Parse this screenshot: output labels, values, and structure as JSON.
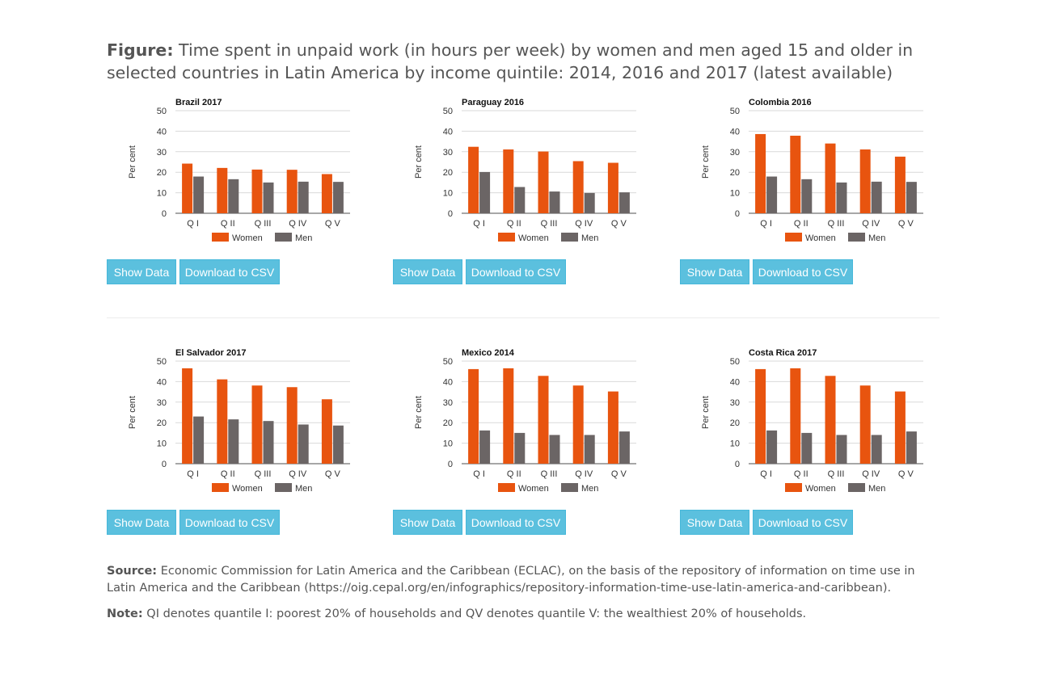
{
  "figure": {
    "label": "Figure:",
    "title": "Time spent in unpaid work (in hours per week) by women and men aged 15 and older in selected countries in Latin America by income quintile: 2014, 2016 and 2017 (latest available)"
  },
  "buttons": {
    "show_data": "Show Data",
    "download_csv": "Download to CSV"
  },
  "source": {
    "label": "Source:",
    "text": "Economic Commission for Latin America and the Caribbean (ECLAC), on the basis of the repository of information on time use in Latin America and the Caribbean (https://oig.cepal.org/en/infographics/repository-information-time-use-latin-america-and-caribbean)."
  },
  "note": {
    "label": "Note:",
    "text": "QI denotes quantile I: poorest 20% of households and QV denotes quantile V: the wealthiest 20% of households."
  },
  "colors": {
    "women": "#e8540f",
    "men": "#6b6565"
  },
  "chart_data": [
    {
      "type": "bar",
      "title": "Brazil 2017",
      "ylabel": "Per cent",
      "ylim": [
        0,
        50
      ],
      "yticks": [
        0,
        10,
        20,
        30,
        40,
        50
      ],
      "categories": [
        "Q I",
        "Q II",
        "Q III",
        "Q IV",
        "Q V"
      ],
      "series": [
        {
          "name": "Women",
          "values": [
            24.2,
            22.1,
            21.3,
            21.2,
            19.1
          ]
        },
        {
          "name": "Men",
          "values": [
            17.9,
            16.6,
            15.0,
            15.4,
            15.3
          ]
        }
      ],
      "legend": "bottom",
      "grid": true
    },
    {
      "type": "bar",
      "title": "Paraguay 2016",
      "ylabel": "Per cent",
      "ylim": [
        0,
        50
      ],
      "yticks": [
        0,
        10,
        20,
        30,
        40,
        50
      ],
      "categories": [
        "Q I",
        "Q II",
        "Q III",
        "Q IV",
        "Q V"
      ],
      "series": [
        {
          "name": "Women",
          "values": [
            32.4,
            31.1,
            30.1,
            25.4,
            24.6
          ]
        },
        {
          "name": "Men",
          "values": [
            20.1,
            12.8,
            10.6,
            9.9,
            10.2
          ]
        }
      ],
      "legend": "bottom",
      "grid": true
    },
    {
      "type": "bar",
      "title": "Colombia 2016",
      "ylabel": "Per cent",
      "ylim": [
        0,
        50
      ],
      "yticks": [
        0,
        10,
        20,
        30,
        40,
        50
      ],
      "categories": [
        "Q I",
        "Q II",
        "Q III",
        "Q IV",
        "Q V"
      ],
      "series": [
        {
          "name": "Women",
          "values": [
            38.6,
            37.8,
            34.0,
            31.1,
            27.6
          ]
        },
        {
          "name": "Men",
          "values": [
            17.9,
            16.6,
            15.0,
            15.4,
            15.3
          ]
        }
      ],
      "legend": "bottom",
      "grid": true
    },
    {
      "type": "bar",
      "title": "El Salvador 2017",
      "ylabel": "Per cent",
      "ylim": [
        0,
        50
      ],
      "yticks": [
        0,
        10,
        20,
        30,
        40,
        50
      ],
      "categories": [
        "Q I",
        "Q II",
        "Q III",
        "Q IV",
        "Q V"
      ],
      "series": [
        {
          "name": "Women",
          "values": [
            46.5,
            41.1,
            38.1,
            37.3,
            31.4
          ]
        },
        {
          "name": "Men",
          "values": [
            23.0,
            21.6,
            20.8,
            19.1,
            18.6
          ]
        }
      ],
      "legend": "bottom",
      "grid": true
    },
    {
      "type": "bar",
      "title": "Mexico 2014",
      "ylabel": "Per cent",
      "ylim": [
        0,
        50
      ],
      "yticks": [
        0,
        10,
        20,
        30,
        40,
        50
      ],
      "categories": [
        "Q I",
        "Q II",
        "Q III",
        "Q IV",
        "Q V"
      ],
      "series": [
        {
          "name": "Women",
          "values": [
            46.1,
            46.5,
            42.8,
            38.1,
            35.2
          ]
        },
        {
          "name": "Men",
          "values": [
            16.2,
            15.0,
            14.0,
            14.0,
            15.7
          ]
        }
      ],
      "legend": "bottom",
      "grid": true
    },
    {
      "type": "bar",
      "title": "Costa Rica 2017",
      "ylabel": "Per cent",
      "ylim": [
        0,
        50
      ],
      "yticks": [
        0,
        10,
        20,
        30,
        40,
        50
      ],
      "categories": [
        "Q I",
        "Q II",
        "Q III",
        "Q IV",
        "Q V"
      ],
      "series": [
        {
          "name": "Women",
          "values": [
            46.1,
            46.5,
            42.8,
            38.1,
            35.2
          ]
        },
        {
          "name": "Men",
          "values": [
            16.2,
            15.0,
            14.0,
            14.0,
            15.7
          ]
        }
      ],
      "legend": "bottom",
      "grid": true
    }
  ]
}
